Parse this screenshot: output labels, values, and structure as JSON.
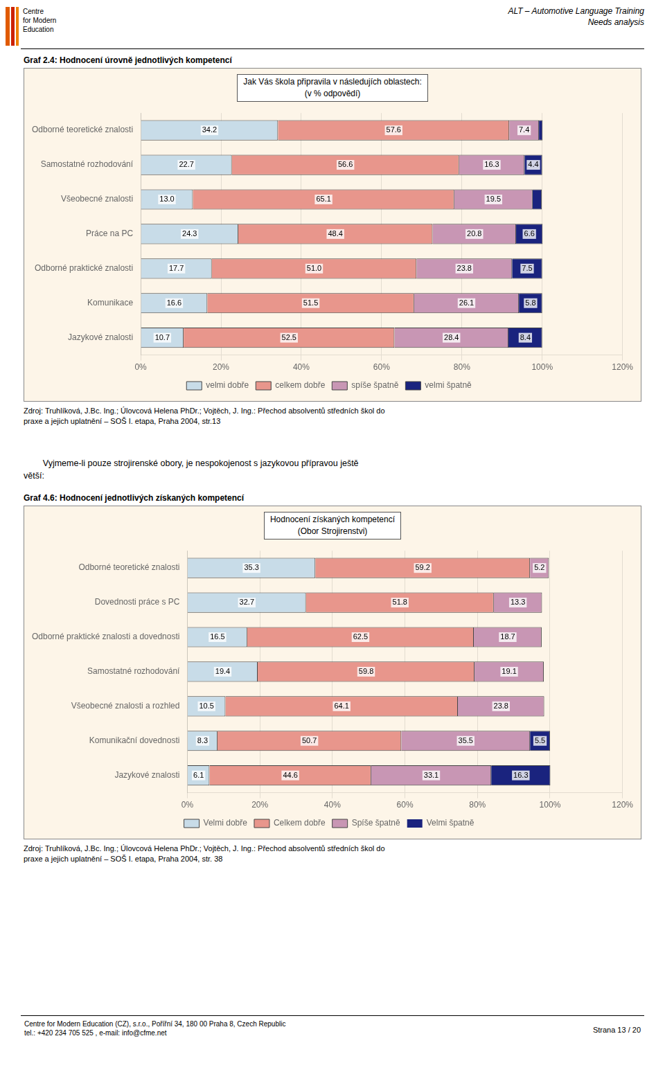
{
  "logo_text": "Centre\nfor Modern\nEducation",
  "header_title": "ALT – Automotive Language Training\nNeeds analysis",
  "middle_text": "        Vyjmeme-li pouze strojirenské obory, je nespokojenost s jazykovou přípravou ještě\nvětší:",
  "footer_text": "Centre for Modern Education (CZ), s.r.o., Pořířní 34, 180 00 Praha 8, Czech Republic\ntel.: +420 234 705 525 , e-mail: info@cfme.net",
  "page_label": "Strana 13 / 20",
  "chart_data": [
    {
      "type": "bar",
      "orientation": "horizontal",
      "stacked": true,
      "title": "Graf 2.4: Hodnocení úrovně jednotlivých kompetencí",
      "subtitle": "Jak Vás škola připravila v následujích oblastech:\n(v % odpovědí)",
      "categories": [
        "Odborné teoretické znalosti",
        "Samostatné rozhodování",
        "Všeobecné znalosti",
        "Práce na PC",
        "Odborné praktické znalosti",
        "Komunikace",
        "Jazykové znalosti"
      ],
      "series": [
        {
          "name": "velmi dobře",
          "color": "#c8dce8",
          "values": [
            34.2,
            22.7,
            13.0,
            24.3,
            17.7,
            16.6,
            10.7
          ],
          "value_labels": [
            "34.2",
            "22.7",
            "13.0",
            "24.3",
            "17.7",
            "16.6",
            "10.7"
          ]
        },
        {
          "name": "celkem dobře",
          "color": "#e8968c",
          "values": [
            57.6,
            56.6,
            65.1,
            48.4,
            51.0,
            51.5,
            52.5
          ],
          "value_labels": [
            "57.6",
            "56.6",
            "65.1",
            "48.4",
            "51.0",
            "51.5",
            "52.5"
          ]
        },
        {
          "name": "spíše špatně",
          "color": "#c896b4",
          "values": [
            7.4,
            16.3,
            19.5,
            20.8,
            23.8,
            26.1,
            28.4
          ],
          "value_labels": [
            "7.4",
            "16.3",
            "19.5",
            "20.8",
            "23.8",
            "26.1",
            "28.4"
          ]
        },
        {
          "name": "velmi špatně",
          "color": "#1a237e",
          "values": [
            0.9,
            4.4,
            2.3,
            6.6,
            7.5,
            5.8,
            8.4
          ],
          "value_labels": [
            null,
            "4.4",
            null,
            "6.6",
            "7.5",
            "5.8",
            "8.4"
          ]
        }
      ],
      "xlim": [
        0,
        120
      ],
      "xticks": [
        {
          "value": 0,
          "label": "0%"
        },
        {
          "value": 20,
          "label": "20%"
        },
        {
          "value": 40,
          "label": "40%"
        },
        {
          "value": 60,
          "label": "60%"
        },
        {
          "value": 80,
          "label": "80%"
        },
        {
          "value": 100,
          "label": "100%"
        },
        {
          "value": 120,
          "label": "120%"
        }
      ],
      "grid": true,
      "legend": "bottom",
      "data_labels": true,
      "annotations": [
        "Zdroj: Truhlíková, J.Bc. Ing.; Úlovcová Helena PhDr.; Vojtěch, J. Ing.: Přechod absolventů středních škol do",
        "praxe a jejich uplatnění – SOŠ I. etapa, Praha 2004, str.13"
      ]
    },
    {
      "type": "bar",
      "orientation": "horizontal",
      "stacked": true,
      "title": "Graf 4.6: Hodnocení jednotlivých získaných kompetencí",
      "subtitle": "Hodnocení získaných kompetencí\n(Obor Strojirenstvi)",
      "categories": [
        "Odborné teoretické znalosti",
        "Dovednosti práce s PC",
        "Odborné praktické znalosti a dovednosti",
        "Samostatné rozhodování",
        "Všeobecné znalosti a rozhled",
        "Komunikační dovednosti",
        "Jazykové znalosti"
      ],
      "series": [
        {
          "name": "Velmi dobře",
          "color": "#c8dce8",
          "values": [
            35.3,
            32.7,
            16.5,
            19.4,
            10.5,
            8.3,
            6.1
          ],
          "value_labels": [
            "35.3",
            "32.7",
            "16.5",
            "19.4",
            "10.5",
            "8.3",
            "6.1"
          ]
        },
        {
          "name": "Celkem dobře",
          "color": "#e8968c",
          "values": [
            59.2,
            51.8,
            62.5,
            59.8,
            64.1,
            50.7,
            44.6
          ],
          "value_labels": [
            "59.2",
            "51.8",
            "62.5",
            "59.8",
            "64.1",
            "50.7",
            "44.6"
          ]
        },
        {
          "name": "Spíše špatně",
          "color": "#c896b4",
          "values": [
            5.2,
            13.3,
            18.7,
            19.1,
            23.8,
            35.5,
            33.1
          ],
          "value_labels": [
            "5.2",
            "13.3",
            "18.7",
            "19.1",
            "23.8",
            "35.5",
            "33.1"
          ]
        },
        {
          "name": "Velmi špatně",
          "color": "#1a237e",
          "values": [
            0.0,
            0.0,
            0.0,
            0.0,
            0.0,
            5.5,
            16.3
          ],
          "value_labels": [
            null,
            null,
            null,
            null,
            null,
            "5.5",
            "16.3"
          ]
        }
      ],
      "xlim": [
        0,
        120
      ],
      "xticks": [
        {
          "value": 0,
          "label": "0%"
        },
        {
          "value": 20,
          "label": "20%"
        },
        {
          "value": 40,
          "label": "40%"
        },
        {
          "value": 60,
          "label": "60%"
        },
        {
          "value": 80,
          "label": "80%"
        },
        {
          "value": 100,
          "label": "100%"
        },
        {
          "value": 120,
          "label": "120%"
        }
      ],
      "grid": true,
      "legend": "bottom",
      "data_labels": true,
      "annotations": [
        "Zdroj: Truhlíková, J.Bc. Ing.; Úlovcová Helena PhDr.; Vojtěch, J. Ing.: Přechod absolventů středních škol do",
        "praxe a jejich uplatnění – SOŠ I. etapa, Praha 2004, str. 38"
      ]
    }
  ]
}
